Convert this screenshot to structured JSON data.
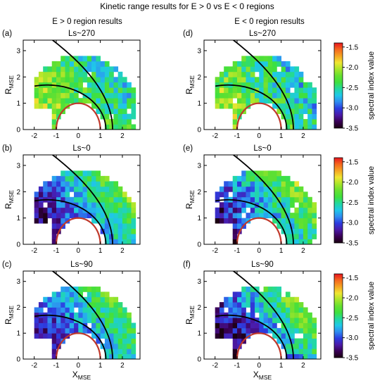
{
  "figure": {
    "title": "Kinetic range results for E > 0 vs E < 0 regions",
    "column_headers": [
      "E > 0 region results",
      "E < 0 region results"
    ]
  },
  "colors": {
    "planet_circle": "#c0392b",
    "boundary_lines": "#000000",
    "colormap": [
      "#1a0010",
      "#3a0055",
      "#4b1aa8",
      "#2c3ce0",
      "#2f8cf0",
      "#1fc8e8",
      "#22d8a0",
      "#3ee03e",
      "#66e030",
      "#a8e62a",
      "#f0e632",
      "#f5a623",
      "#f5681e",
      "#e8141e"
    ]
  },
  "chart_data": [
    {
      "type": "heatmap",
      "panel_label": "(a)",
      "title": "Ls~270",
      "xlabel_main": "",
      "xlabel_sub": "",
      "ylabel_main": "R",
      "ylabel_sub": "MSE",
      "xlim": [
        -2.5,
        2.8
      ],
      "ylim": [
        0,
        3.4
      ],
      "xticks": [
        "-2",
        "-1",
        "0",
        "1",
        "2"
      ],
      "yticks": [
        "0",
        "1",
        "2",
        "3"
      ],
      "grid": false,
      "colorbar": false
    },
    {
      "type": "heatmap",
      "panel_label": "(d)",
      "title": "Ls~270",
      "xlabel_main": "",
      "xlabel_sub": "",
      "ylabel_main": "R",
      "ylabel_sub": "MSE",
      "xlim": [
        -2.5,
        2.8
      ],
      "ylim": [
        0,
        3.4
      ],
      "xticks": [
        "-2",
        "-1",
        "0",
        "1",
        "2"
      ],
      "yticks": [
        "0",
        "1",
        "2",
        "3"
      ],
      "grid": false,
      "colorbar": true,
      "colorbar_range": [
        -3.5,
        -1.4
      ],
      "colorbar_ticks": [
        "-1.5",
        "-2.0",
        "-2.5",
        "-3.0",
        "-3.5"
      ],
      "colorbar_label": "spectral index value"
    },
    {
      "type": "heatmap",
      "panel_label": "(b)",
      "title": "Ls~0",
      "xlabel_main": "",
      "xlabel_sub": "",
      "ylabel_main": "R",
      "ylabel_sub": "MSE",
      "xlim": [
        -2.5,
        2.8
      ],
      "ylim": [
        0,
        3.4
      ],
      "xticks": [
        "-2",
        "-1",
        "0",
        "1",
        "2"
      ],
      "yticks": [
        "0",
        "1",
        "2",
        "3"
      ],
      "grid": false,
      "colorbar": false
    },
    {
      "type": "heatmap",
      "panel_label": "(e)",
      "title": "Ls~0",
      "xlabel_main": "",
      "xlabel_sub": "",
      "ylabel_main": "R",
      "ylabel_sub": "MSE",
      "xlim": [
        -2.5,
        2.8
      ],
      "ylim": [
        0,
        3.4
      ],
      "xticks": [
        "-2",
        "-1",
        "0",
        "1",
        "2"
      ],
      "yticks": [
        "0",
        "1",
        "2",
        "3"
      ],
      "grid": false,
      "colorbar": true,
      "colorbar_range": [
        -3.5,
        -1.4
      ],
      "colorbar_ticks": [
        "-1.5",
        "-2.0",
        "-2.5",
        "-3.0",
        "-3.5"
      ],
      "colorbar_label": "spectral index value"
    },
    {
      "type": "heatmap",
      "panel_label": "(c)",
      "title": "Ls~90",
      "xlabel_main": "X",
      "xlabel_sub": "MSE",
      "ylabel_main": "R",
      "ylabel_sub": "MSE",
      "xlim": [
        -2.5,
        2.8
      ],
      "ylim": [
        0,
        3.4
      ],
      "xticks": [
        "-2",
        "-1",
        "0",
        "1",
        "2"
      ],
      "yticks": [
        "0",
        "1",
        "2",
        "3"
      ],
      "grid": false,
      "colorbar": false
    },
    {
      "type": "heatmap",
      "panel_label": "(f)",
      "title": "Ls~90",
      "xlabel_main": "X",
      "xlabel_sub": "MSE",
      "ylabel_main": "R",
      "ylabel_sub": "MSE",
      "xlim": [
        -2.5,
        2.8
      ],
      "ylim": [
        0,
        3.4
      ],
      "xticks": [
        "-2",
        "-1",
        "0",
        "1",
        "2"
      ],
      "yticks": [
        "0",
        "1",
        "2",
        "3"
      ],
      "grid": false,
      "colorbar": true,
      "colorbar_range": [
        -3.5,
        -1.4
      ],
      "colorbar_ticks": [
        "-1.5",
        "-2.0",
        "-2.5",
        "-3.0",
        "-3.5"
      ],
      "colorbar_label": "spectral index value"
    }
  ]
}
